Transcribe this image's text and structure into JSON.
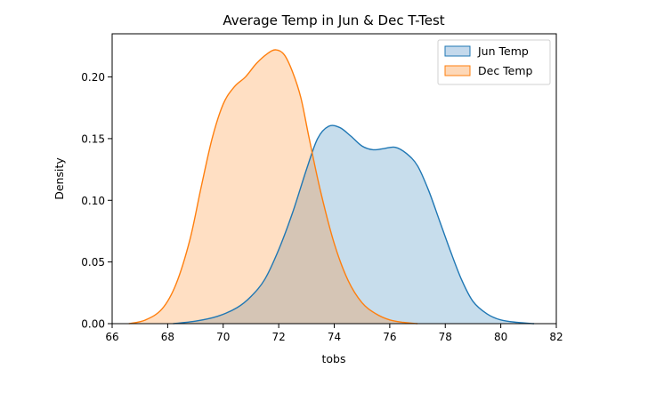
{
  "chart_data": {
    "type": "area",
    "title": "Average Temp in Jun & Dec T-Test",
    "xlabel": "tobs",
    "ylabel": "Density",
    "xlim": [
      66,
      82
    ],
    "ylim": [
      0,
      0.235
    ],
    "xticks": [
      66,
      68,
      70,
      72,
      74,
      76,
      78,
      80,
      82
    ],
    "yticks": [
      0.0,
      0.05,
      0.1,
      0.15,
      0.2
    ],
    "ytick_labels": [
      "0.00",
      "0.05",
      "0.10",
      "0.15",
      "0.20"
    ],
    "legend_position": "top-right",
    "grid": false,
    "series": [
      {
        "name": "Jun Temp",
        "color": "#1f77b4",
        "fill": "#c4d9ec",
        "x": [
          68.2,
          69.0,
          69.8,
          70.5,
          71.0,
          71.5,
          72.0,
          72.5,
          73.0,
          73.4,
          73.8,
          74.2,
          74.6,
          75.0,
          75.4,
          75.8,
          76.2,
          76.6,
          77.0,
          77.4,
          77.8,
          78.2,
          78.6,
          79.0,
          79.5,
          80.0,
          80.6,
          81.2
        ],
        "y": [
          0.0,
          0.002,
          0.006,
          0.013,
          0.022,
          0.036,
          0.06,
          0.09,
          0.125,
          0.15,
          0.16,
          0.159,
          0.152,
          0.144,
          0.141,
          0.142,
          0.143,
          0.138,
          0.128,
          0.108,
          0.083,
          0.058,
          0.035,
          0.018,
          0.008,
          0.003,
          0.001,
          0.0
        ]
      },
      {
        "name": "Dec Temp",
        "color": "#ff7f0e",
        "fill": "#fdd8b8",
        "x": [
          66.6,
          67.2,
          67.8,
          68.3,
          68.8,
          69.2,
          69.6,
          70.0,
          70.4,
          70.8,
          71.2,
          71.6,
          71.9,
          72.2,
          72.5,
          72.8,
          73.1,
          73.5,
          74.0,
          74.5,
          75.0,
          75.5,
          76.0,
          76.5,
          77.0
        ],
        "y": [
          0.0,
          0.003,
          0.012,
          0.032,
          0.068,
          0.11,
          0.15,
          0.178,
          0.192,
          0.2,
          0.211,
          0.219,
          0.222,
          0.218,
          0.204,
          0.183,
          0.15,
          0.108,
          0.065,
          0.035,
          0.017,
          0.008,
          0.003,
          0.001,
          0.0
        ]
      }
    ]
  }
}
